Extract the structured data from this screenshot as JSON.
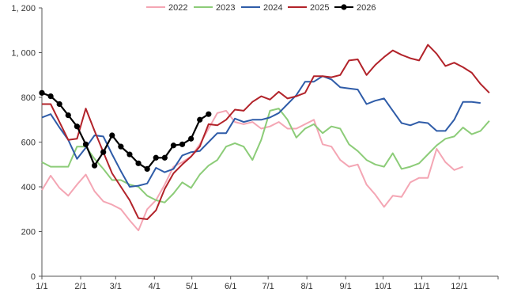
{
  "chart_data": {
    "type": "line",
    "title": "",
    "xlabel": "",
    "ylabel": "",
    "ylim": [
      0,
      1200
    ],
    "yticks": [
      0,
      200,
      400,
      600,
      800,
      1000,
      1200
    ],
    "ytick_labels": [
      "0",
      "200",
      "400",
      "600",
      "800",
      "1, 000",
      "1, 200"
    ],
    "xtick_labels": [
      "1/1",
      "2/1",
      "3/1",
      "4/1",
      "5/1",
      "6/1",
      "7/1",
      "8/1",
      "9/1",
      "10/1",
      "11/1",
      "12/1"
    ],
    "x_unit": "week",
    "x_max_week": 52,
    "grid": false,
    "legend_position": "top",
    "series": [
      {
        "name": "2022",
        "color": "#f4a6b4",
        "markers": false,
        "values": [
          385,
          450,
          395,
          360,
          410,
          455,
          380,
          335,
          320,
          300,
          250,
          205,
          300,
          340,
          410,
          490,
          510,
          535,
          590,
          660,
          730,
          740,
          690,
          680,
          690,
          660,
          670,
          690,
          660,
          660,
          680,
          700,
          590,
          580,
          520,
          490,
          500,
          410,
          365,
          310,
          360,
          355,
          420,
          440,
          440,
          570,
          510,
          475,
          490
        ]
      },
      {
        "name": "2023",
        "color": "#8ccc78",
        "markers": false,
        "values": [
          510,
          490,
          490,
          490,
          580,
          580,
          525,
          480,
          430,
          430,
          410,
          400,
          360,
          340,
          330,
          370,
          420,
          395,
          455,
          495,
          520,
          580,
          595,
          580,
          520,
          610,
          740,
          750,
          700,
          620,
          660,
          680,
          640,
          670,
          660,
          590,
          560,
          520,
          500,
          490,
          550,
          480,
          490,
          505,
          545,
          585,
          615,
          625,
          665,
          635,
          650,
          695
        ]
      },
      {
        "name": "2024",
        "color": "#2f5ca8",
        "markers": false,
        "values": [
          710,
          725,
          665,
          610,
          525,
          575,
          630,
          625,
          545,
          470,
          400,
          405,
          415,
          485,
          465,
          480,
          540,
          555,
          560,
          600,
          640,
          640,
          705,
          690,
          700,
          700,
          710,
          730,
          770,
          810,
          870,
          870,
          895,
          880,
          845,
          840,
          835,
          770,
          785,
          795,
          740,
          685,
          675,
          690,
          685,
          650,
          650,
          700,
          780,
          780,
          775
        ]
      },
      {
        "name": "2025",
        "color": "#b2232a",
        "markers": false,
        "values": [
          770,
          770,
          690,
          610,
          615,
          750,
          650,
          555,
          460,
          400,
          340,
          260,
          255,
          295,
          390,
          460,
          500,
          535,
          580,
          680,
          675,
          700,
          745,
          740,
          780,
          805,
          790,
          825,
          795,
          805,
          820,
          895,
          895,
          890,
          900,
          965,
          970,
          900,
          945,
          980,
          1010,
          990,
          975,
          965,
          1035,
          995,
          940,
          955,
          935,
          910,
          860,
          820
        ]
      },
      {
        "name": "2026",
        "color": "#000000",
        "markers": true,
        "values": [
          820,
          805,
          770,
          720,
          670,
          590,
          495,
          555,
          630,
          580,
          545,
          505,
          480,
          530,
          530,
          585,
          590,
          615,
          700,
          725
        ]
      }
    ]
  }
}
